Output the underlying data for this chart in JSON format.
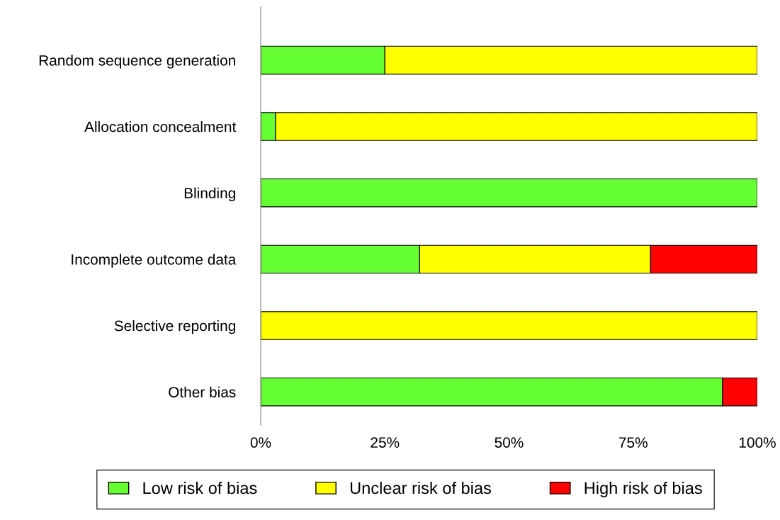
{
  "chart_data": {
    "type": "bar",
    "orientation": "horizontal",
    "stacked": true,
    "categories": [
      "Random sequence generation",
      "Allocation concealment",
      "Blinding",
      "Incomplete outcome data",
      "Selective reporting",
      "Other bias"
    ],
    "series": [
      {
        "name": "Low risk of bias",
        "color": "#66ff33",
        "values": [
          25,
          3,
          100,
          32,
          0,
          93
        ]
      },
      {
        "name": "Unclear risk of bias",
        "color": "#ffff00",
        "values": [
          75,
          97,
          0,
          46.5,
          100,
          0
        ]
      },
      {
        "name": "High risk of bias",
        "color": "#ff0000",
        "values": [
          0,
          0,
          0,
          21.5,
          0,
          7
        ]
      }
    ],
    "xlim": [
      0,
      100
    ],
    "xticks": [
      {
        "value": 0,
        "label": "0%"
      },
      {
        "value": 25,
        "label": "25%"
      },
      {
        "value": 50,
        "label": "50%"
      },
      {
        "value": 75,
        "label": "75%"
      },
      {
        "value": 100,
        "label": "100%"
      }
    ],
    "grid": false,
    "legend": "bottom"
  }
}
